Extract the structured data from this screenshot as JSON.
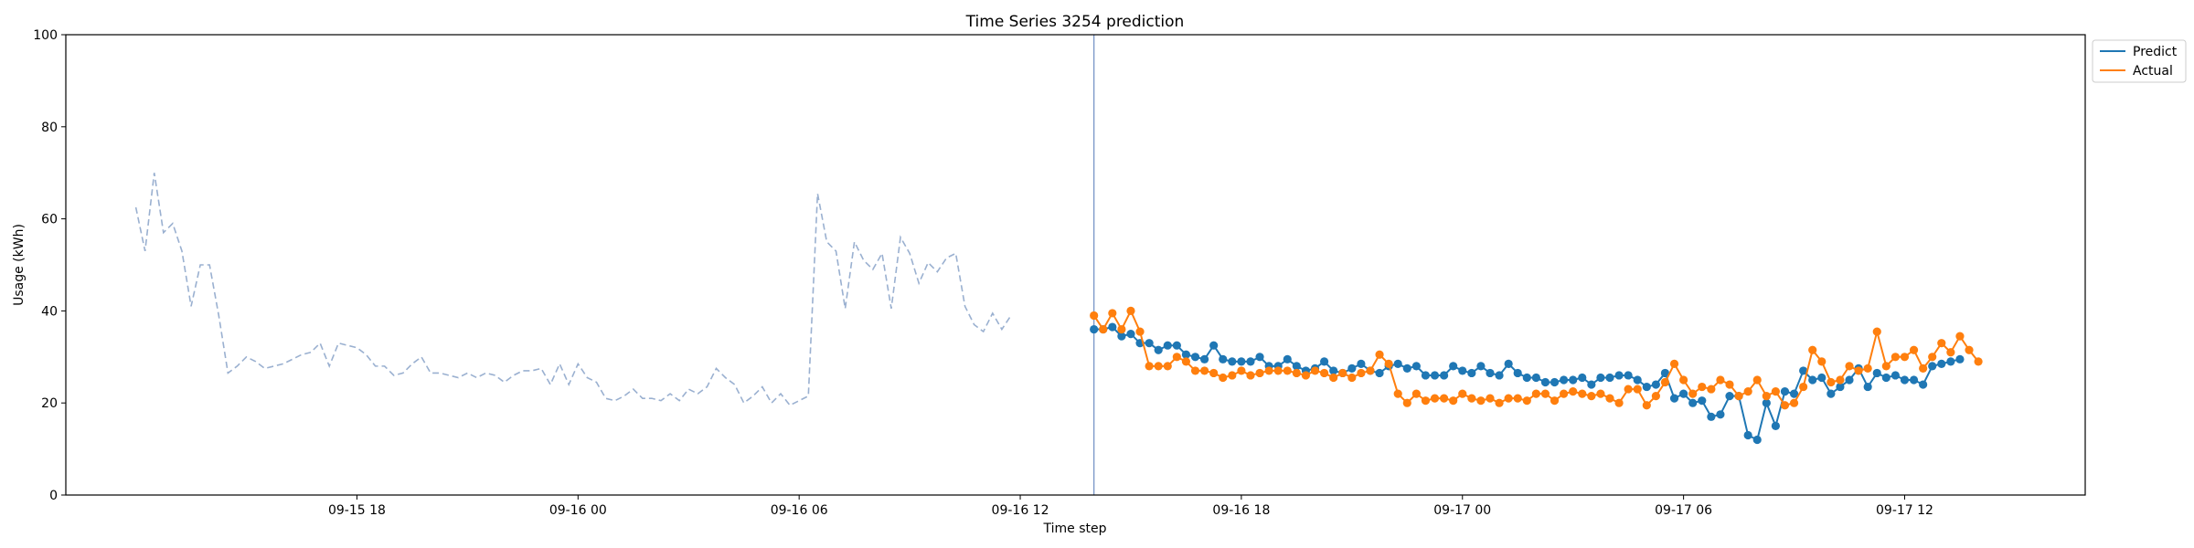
{
  "chart_data": {
    "type": "line",
    "title": "Time Series 3254 prediction",
    "xlabel": "Time step",
    "ylabel": "Usage (kWh)",
    "ylim": [
      0,
      100
    ],
    "yticks": [
      0,
      20,
      40,
      60,
      80,
      100
    ],
    "xaxis": {
      "unit": "datetime",
      "min": "2020-09-15 10:06",
      "max": "2020-09-17 16:54",
      "ticks": [
        {
          "t": "2020-09-15 18:00",
          "label": "09-15 18"
        },
        {
          "t": "2020-09-16 00:00",
          "label": "09-16 00"
        },
        {
          "t": "2020-09-16 06:00",
          "label": "09-16 06"
        },
        {
          "t": "2020-09-16 12:00",
          "label": "09-16 12"
        },
        {
          "t": "2020-09-16 18:00",
          "label": "09-16 18"
        },
        {
          "t": "2020-09-17 00:00",
          "label": "09-17 00"
        },
        {
          "t": "2020-09-17 06:00",
          "label": "09-17 06"
        },
        {
          "t": "2020-09-17 12:00",
          "label": "09-17 12"
        }
      ]
    },
    "forecast_start": "2020-09-16 14:00",
    "legend": {
      "position": "top-right",
      "entries": [
        "Predict",
        "Actual"
      ]
    },
    "grid": false,
    "series": [
      {
        "name": "",
        "style": "dashed",
        "color": "#9ab0d0",
        "start": "2020-09-15 12:00",
        "step_minutes": 15,
        "values": [
          62.5,
          53,
          70,
          57,
          59,
          53,
          41,
          50,
          50,
          39,
          26.5,
          28,
          30,
          29,
          27.5,
          28,
          28.5,
          29.5,
          30.5,
          31,
          33,
          28,
          33,
          32.5,
          32,
          30.5,
          28,
          28,
          26,
          26.5,
          28.5,
          30,
          26.5,
          26.5,
          26,
          25.5,
          26.5,
          25.5,
          26.5,
          26,
          24.5,
          26,
          27,
          27,
          27.5,
          24,
          28.5,
          24,
          28.5,
          25.5,
          24.5,
          21,
          20.5,
          21.5,
          23,
          21,
          21,
          20.5,
          22,
          20.5,
          23,
          22,
          23.5,
          27.5,
          25.5,
          24,
          20,
          21.5,
          23.5,
          20,
          22,
          19.5,
          20.5,
          21.5,
          65.5,
          55,
          53,
          40.5,
          55,
          51,
          49,
          52.5,
          40.5,
          56,
          52.5,
          46,
          50.5,
          48.5,
          51.5,
          52.5,
          41,
          37,
          35.5,
          39.5,
          36,
          39
        ]
      },
      {
        "name": "Predict",
        "color": "#1f77b4",
        "start": "2020-09-16 14:00",
        "step_minutes": 15,
        "values": [
          36,
          36,
          36.5,
          34.5,
          35,
          33,
          33,
          31.5,
          32.5,
          32.5,
          30.5,
          30,
          29.5,
          32.5,
          29.5,
          29,
          29,
          29,
          30,
          28,
          28,
          29.5,
          28,
          27,
          27.5,
          29,
          27,
          26.5,
          27.5,
          28.5,
          27,
          26.5,
          28,
          28.5,
          27.5,
          28,
          26,
          26,
          26,
          28,
          27,
          26.5,
          28,
          26.5,
          26,
          28.5,
          26.5,
          25.5,
          25.5,
          24.5,
          24.5,
          25,
          25,
          25.5,
          24,
          25.5,
          25.5,
          26,
          26,
          25,
          23.5,
          24,
          26.5,
          21,
          22,
          20,
          20.5,
          17,
          17.5,
          21.5,
          21.5,
          13,
          12,
          20,
          15,
          22.5,
          22,
          27,
          25,
          25.5,
          22,
          23.5,
          25,
          27.5,
          23.5,
          26.5,
          25.5,
          26,
          25,
          25,
          24,
          28,
          28.5,
          29,
          29.5
        ]
      },
      {
        "name": "Actual",
        "color": "#ff7f0e",
        "start": "2020-09-16 14:00",
        "step_minutes": 15,
        "values": [
          39,
          36,
          39.5,
          36,
          40,
          35.5,
          28,
          28,
          28,
          30,
          29,
          27,
          27,
          26.5,
          25.5,
          26,
          27,
          26,
          26.5,
          27,
          27,
          27,
          26.5,
          26,
          27,
          26.5,
          25.5,
          26.5,
          25.5,
          26.5,
          27,
          30.5,
          28.5,
          22,
          20,
          22,
          20.5,
          21,
          21,
          20.5,
          22,
          21,
          20.5,
          21,
          20,
          21,
          21,
          20.5,
          22,
          22,
          20.5,
          22,
          22.5,
          22,
          21.5,
          22,
          21,
          20,
          23,
          23,
          19.5,
          21.5,
          24.5,
          28.5,
          25,
          22,
          23.5,
          23,
          25,
          24,
          21.5,
          22.5,
          25,
          21.5,
          22.5,
          19.5,
          20,
          23.5,
          31.5,
          29,
          24.5,
          25,
          28,
          27,
          27.5,
          35.5,
          28,
          30,
          30,
          31.5,
          27.5,
          30,
          33,
          31,
          34.5,
          31.5,
          29
        ]
      }
    ]
  }
}
